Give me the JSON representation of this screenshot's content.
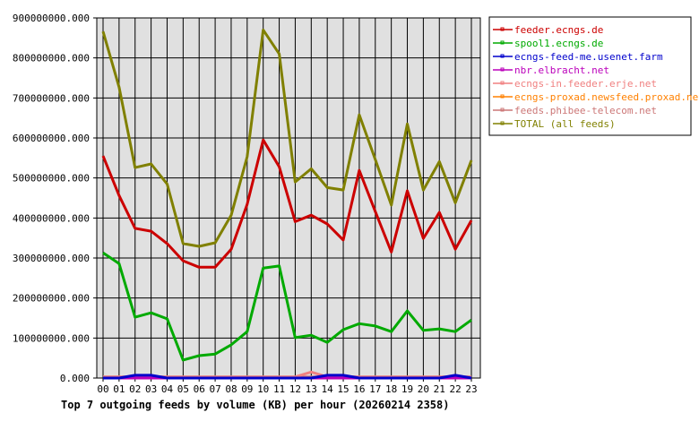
{
  "chart_data": {
    "type": "line",
    "title": "Top 7 outgoing feeds by volume (KB) per hour (20260214 2358)",
    "xlabel": "",
    "ylabel": "",
    "categories": [
      "00",
      "01",
      "02",
      "03",
      "04",
      "05",
      "06",
      "07",
      "08",
      "09",
      "10",
      "11",
      "12",
      "13",
      "14",
      "15",
      "16",
      "17",
      "18",
      "19",
      "20",
      "21",
      "22",
      "23"
    ],
    "ylim": [
      0,
      900000000
    ],
    "yticks": [
      "0.000",
      "100000000.000",
      "200000000.000",
      "300000000.000",
      "400000000.000",
      "500000000.000",
      "600000000.000",
      "700000000.000",
      "800000000.000",
      "900000000.000"
    ],
    "grid": true,
    "legend_position": "right",
    "series": [
      {
        "name": "feeder.ecngs.de",
        "color": "#cc0000",
        "values": [
          555000000,
          456000000,
          374000000,
          367000000,
          336000000,
          293000000,
          277000000,
          277000000,
          322000000,
          434000000,
          595000000,
          528000000,
          391000000,
          407000000,
          385000000,
          345000000,
          519000000,
          416000000,
          315000000,
          468000000,
          349000000,
          414000000,
          322000000,
          394000000
        ]
      },
      {
        "name": "spool1.ecngs.de",
        "color": "#00aa00",
        "values": [
          313000000,
          286000000,
          152000000,
          163000000,
          148000000,
          45000000,
          56000000,
          60000000,
          83000000,
          116000000,
          275000000,
          280000000,
          101000000,
          107000000,
          89000000,
          121000000,
          136000000,
          130000000,
          116000000,
          168000000,
          119000000,
          123000000,
          116000000,
          145000000
        ]
      },
      {
        "name": "ecngs-feed-me.usenet.farm",
        "color": "#0000cc",
        "values": [
          0,
          0,
          7000000,
          7000000,
          0,
          0,
          0,
          0,
          0,
          0,
          0,
          0,
          0,
          0,
          7000000,
          7000000,
          0,
          0,
          0,
          0,
          0,
          0,
          7000000,
          0
        ]
      },
      {
        "name": "nbr.elbracht.net",
        "color": "#bb00bb",
        "values": [
          0,
          0,
          0,
          0,
          0,
          0,
          0,
          0,
          0,
          0,
          0,
          0,
          0,
          0,
          0,
          0,
          0,
          0,
          0,
          0,
          0,
          0,
          0,
          0
        ]
      },
      {
        "name": "ecngs-in.feeder.erje.net",
        "color": "#f08080",
        "values": [
          3000000,
          3000000,
          3000000,
          3000000,
          3000000,
          3000000,
          3000000,
          3000000,
          3000000,
          3000000,
          3000000,
          3000000,
          3000000,
          15000000,
          3000000,
          3000000,
          3000000,
          3000000,
          3000000,
          3000000,
          3000000,
          3000000,
          3000000,
          3000000
        ]
      },
      {
        "name": "ecngs-proxad.newsfeed.proxad.net",
        "color": "#ff8000",
        "values": [
          0,
          0,
          0,
          0,
          0,
          0,
          0,
          0,
          0,
          0,
          0,
          0,
          0,
          0,
          0,
          0,
          0,
          0,
          0,
          0,
          0,
          0,
          0,
          0
        ]
      },
      {
        "name": "feeds.phibee-telecom.net",
        "color": "#cc7777",
        "values": [
          3000000,
          3000000,
          3000000,
          3000000,
          3000000,
          3000000,
          3000000,
          3000000,
          3000000,
          3000000,
          3000000,
          3000000,
          3000000,
          3000000,
          3000000,
          3000000,
          3000000,
          3000000,
          3000000,
          3000000,
          3000000,
          3000000,
          3000000,
          3000000
        ]
      },
      {
        "name": "TOTAL (all feeds)",
        "color": "#808000",
        "values": [
          866000000,
          727000000,
          526000000,
          535000000,
          485000000,
          336000000,
          329000000,
          338000000,
          407000000,
          553000000,
          870000000,
          810000000,
          490000000,
          523000000,
          476000000,
          470000000,
          658000000,
          546000000,
          432000000,
          635000000,
          470000000,
          541000000,
          438000000,
          544000000
        ]
      }
    ]
  }
}
